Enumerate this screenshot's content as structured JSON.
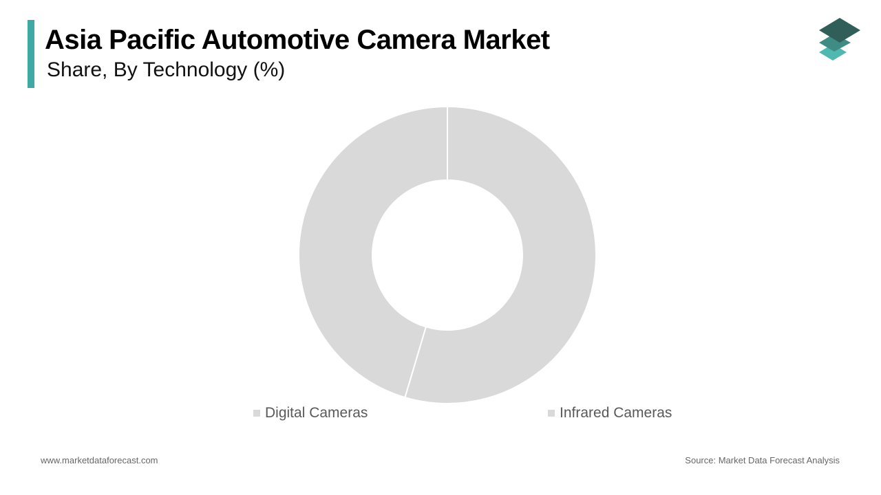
{
  "header": {
    "title": "Asia Pacific Automotive Camera Market",
    "subtitle": "Share, By Technology (%)",
    "accent_color": "#3fa9a6"
  },
  "logo": {
    "icon": "stacked-layers-icon",
    "colors": [
      "#2f5f58",
      "#3f8c84",
      "#4fb8b0"
    ]
  },
  "chart_data": {
    "type": "pie",
    "style": "donut",
    "title": "",
    "categories": [
      "Digital Cameras",
      "Infrared Cameras"
    ],
    "values": [
      45.4,
      54.6
    ],
    "colors": [
      "#d9d9d9",
      "#d9d9d9"
    ],
    "legend_position": "bottom"
  },
  "footer": {
    "website": "www.marketdataforecast.com",
    "source": "Source: Market Data Forecast Analysis"
  }
}
